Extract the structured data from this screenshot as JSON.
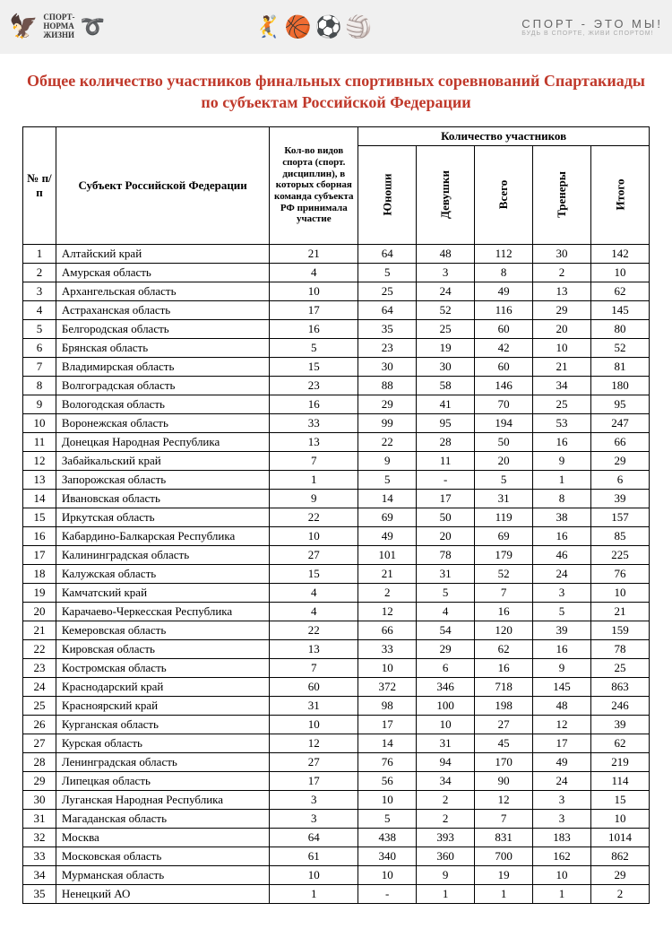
{
  "banner": {
    "left_text1": "СПОРТ-",
    "left_text2": "НОРМА",
    "left_text3": "ЖИЗНИ",
    "right_line1": "СПОРТ - ЭТО МЫ!",
    "right_line2": "БУДЬ В СПОРТЕ, ЖИВИ СПОРТОМ!"
  },
  "title_color": "#c0392b",
  "title": "Общее количество участников финальных спортивных соревнований Спартакиады по субъектам Российской Федерации",
  "columns": {
    "num": "№ п/п",
    "subject": "Субъект Российской Федерации",
    "kinds": "Кол-во видов спорта (спорт. дисциплин), в которых сборная команда субъекта РФ принимала участие",
    "group": "Количество участников",
    "boys": "Юноши",
    "girls": "Девушки",
    "total": "Всего",
    "coaches": "Тренеры",
    "grand": "Итого"
  },
  "rows": [
    {
      "n": "1",
      "s": "Алтайский край",
      "k": "21",
      "b": "64",
      "g": "48",
      "t": "112",
      "c": "30",
      "i": "142"
    },
    {
      "n": "2",
      "s": "Амурская область",
      "k": "4",
      "b": "5",
      "g": "3",
      "t": "8",
      "c": "2",
      "i": "10"
    },
    {
      "n": "3",
      "s": "Архангельская область",
      "k": "10",
      "b": "25",
      "g": "24",
      "t": "49",
      "c": "13",
      "i": "62"
    },
    {
      "n": "4",
      "s": "Астраханская область",
      "k": "17",
      "b": "64",
      "g": "52",
      "t": "116",
      "c": "29",
      "i": "145"
    },
    {
      "n": "5",
      "s": "Белгородская область",
      "k": "16",
      "b": "35",
      "g": "25",
      "t": "60",
      "c": "20",
      "i": "80"
    },
    {
      "n": "6",
      "s": "Брянская область",
      "k": "5",
      "b": "23",
      "g": "19",
      "t": "42",
      "c": "10",
      "i": "52"
    },
    {
      "n": "7",
      "s": "Владимирская область",
      "k": "15",
      "b": "30",
      "g": "30",
      "t": "60",
      "c": "21",
      "i": "81"
    },
    {
      "n": "8",
      "s": "Волгоградская область",
      "k": "23",
      "b": "88",
      "g": "58",
      "t": "146",
      "c": "34",
      "i": "180"
    },
    {
      "n": "9",
      "s": "Вологодская область",
      "k": "16",
      "b": "29",
      "g": "41",
      "t": "70",
      "c": "25",
      "i": "95"
    },
    {
      "n": "10",
      "s": "Воронежская область",
      "k": "33",
      "b": "99",
      "g": "95",
      "t": "194",
      "c": "53",
      "i": "247"
    },
    {
      "n": "11",
      "s": "Донецкая Народная Республика",
      "k": "13",
      "b": "22",
      "g": "28",
      "t": "50",
      "c": "16",
      "i": "66"
    },
    {
      "n": "12",
      "s": "Забайкальский край",
      "k": "7",
      "b": "9",
      "g": "11",
      "t": "20",
      "c": "9",
      "i": "29"
    },
    {
      "n": "13",
      "s": "Запорожская область",
      "k": "1",
      "b": "5",
      "g": "-",
      "t": "5",
      "c": "1",
      "i": "6"
    },
    {
      "n": "14",
      "s": "Ивановская область",
      "k": "9",
      "b": "14",
      "g": "17",
      "t": "31",
      "c": "8",
      "i": "39"
    },
    {
      "n": "15",
      "s": "Иркутская область",
      "k": "22",
      "b": "69",
      "g": "50",
      "t": "119",
      "c": "38",
      "i": "157"
    },
    {
      "n": "16",
      "s": "Кабардино-Балкарская Республика",
      "k": "10",
      "b": "49",
      "g": "20",
      "t": "69",
      "c": "16",
      "i": "85"
    },
    {
      "n": "17",
      "s": "Калининградская область",
      "k": "27",
      "b": "101",
      "g": "78",
      "t": "179",
      "c": "46",
      "i": "225"
    },
    {
      "n": "18",
      "s": "Калужская область",
      "k": "15",
      "b": "21",
      "g": "31",
      "t": "52",
      "c": "24",
      "i": "76"
    },
    {
      "n": "19",
      "s": "Камчатский край",
      "k": "4",
      "b": "2",
      "g": "5",
      "t": "7",
      "c": "3",
      "i": "10"
    },
    {
      "n": "20",
      "s": "Карачаево-Черкесская Республика",
      "k": "4",
      "b": "12",
      "g": "4",
      "t": "16",
      "c": "5",
      "i": "21"
    },
    {
      "n": "21",
      "s": "Кемеровская область",
      "k": "22",
      "b": "66",
      "g": "54",
      "t": "120",
      "c": "39",
      "i": "159"
    },
    {
      "n": "22",
      "s": "Кировская область",
      "k": "13",
      "b": "33",
      "g": "29",
      "t": "62",
      "c": "16",
      "i": "78"
    },
    {
      "n": "23",
      "s": "Костромская область",
      "k": "7",
      "b": "10",
      "g": "6",
      "t": "16",
      "c": "9",
      "i": "25"
    },
    {
      "n": "24",
      "s": "Краснодарский край",
      "k": "60",
      "b": "372",
      "g": "346",
      "t": "718",
      "c": "145",
      "i": "863"
    },
    {
      "n": "25",
      "s": "Красноярский край",
      "k": "31",
      "b": "98",
      "g": "100",
      "t": "198",
      "c": "48",
      "i": "246"
    },
    {
      "n": "26",
      "s": "Курганская область",
      "k": "10",
      "b": "17",
      "g": "10",
      "t": "27",
      "c": "12",
      "i": "39"
    },
    {
      "n": "27",
      "s": "Курская область",
      "k": "12",
      "b": "14",
      "g": "31",
      "t": "45",
      "c": "17",
      "i": "62"
    },
    {
      "n": "28",
      "s": "Ленинградская область",
      "k": "27",
      "b": "76",
      "g": "94",
      "t": "170",
      "c": "49",
      "i": "219"
    },
    {
      "n": "29",
      "s": "Липецкая область",
      "k": "17",
      "b": "56",
      "g": "34",
      "t": "90",
      "c": "24",
      "i": "114"
    },
    {
      "n": "30",
      "s": "Луганская Народная Республика",
      "k": "3",
      "b": "10",
      "g": "2",
      "t": "12",
      "c": "3",
      "i": "15"
    },
    {
      "n": "31",
      "s": "Магаданская область",
      "k": "3",
      "b": "5",
      "g": "2",
      "t": "7",
      "c": "3",
      "i": "10"
    },
    {
      "n": "32",
      "s": "Москва",
      "k": "64",
      "b": "438",
      "g": "393",
      "t": "831",
      "c": "183",
      "i": "1014"
    },
    {
      "n": "33",
      "s": "Московская область",
      "k": "61",
      "b": "340",
      "g": "360",
      "t": "700",
      "c": "162",
      "i": "862"
    },
    {
      "n": "34",
      "s": "Мурманская область",
      "k": "10",
      "b": "10",
      "g": "9",
      "t": "19",
      "c": "10",
      "i": "29"
    },
    {
      "n": "35",
      "s": "Ненецкий АО",
      "k": "1",
      "b": "-",
      "g": "1",
      "t": "1",
      "c": "1",
      "i": "2"
    }
  ]
}
